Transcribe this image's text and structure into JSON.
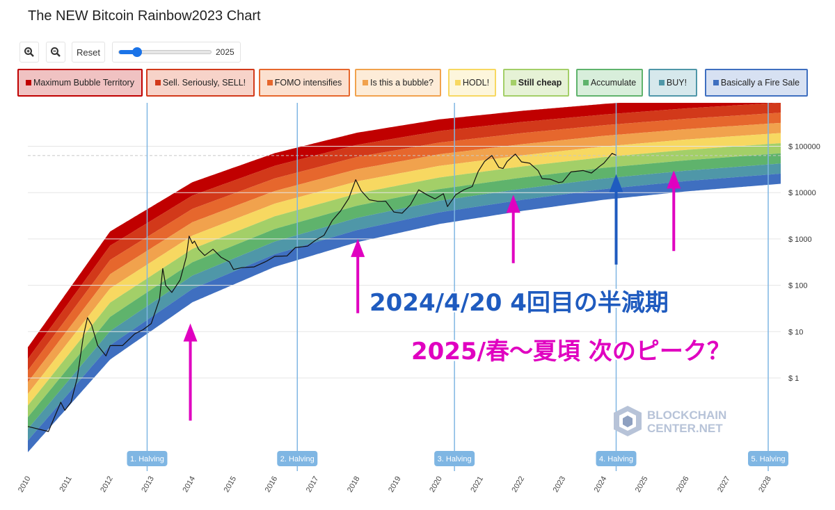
{
  "title": "The NEW Bitcoin Rainbow2023 Chart",
  "toolbar": {
    "zoom_in_icon": "zoom-in-icon",
    "zoom_out_icon": "zoom-out-icon",
    "reset_label": "Reset",
    "year_slider_value": 2025,
    "year_slider_fraction": 0.2,
    "year_slider_label": "2025"
  },
  "legend": [
    {
      "label": "Maximum Bubble Territory",
      "color": "#c00000",
      "bg": "#f0c2c2"
    },
    {
      "label": "Sell. Seriously, SELL!",
      "color": "#d2391a",
      "bg": "#f7d3c9"
    },
    {
      "label": "FOMO intensifies",
      "color": "#e6672d",
      "bg": "#fbe0cf"
    },
    {
      "label": "Is this a bubble?",
      "color": "#f1a24d",
      "bg": "#fdecd8"
    },
    {
      "label": "HODL!",
      "color": "#f7d861",
      "bg": "#fdf6dc"
    },
    {
      "label": "Still cheap",
      "color": "#a3cf68",
      "bg": "#e6f2d6",
      "bold": true
    },
    {
      "label": "Accumulate",
      "color": "#5fb36c",
      "bg": "#d8eedb"
    },
    {
      "label": "BUY!",
      "color": "#4f97a8",
      "bg": "#d6e8ec"
    },
    {
      "label": "Basically a Fire Sale",
      "color": "#3f6fc0",
      "bg": "#d7e1f2"
    }
  ],
  "chart_data": {
    "type": "line",
    "title": "The NEW Bitcoin Rainbow2023 Chart",
    "y_scale": "log",
    "x_range": [
      2010.0,
      2028.3
    ],
    "y_range": [
      0.03,
      500000
    ],
    "y_tick_labels": [
      {
        "value": 1,
        "label": "$ 1"
      },
      {
        "value": 10,
        "label": "$ 10"
      },
      {
        "value": 100,
        "label": "$ 100"
      },
      {
        "value": 1000,
        "label": "$ 1000"
      },
      {
        "value": 10000,
        "label": "$ 10000"
      },
      {
        "value": 100000,
        "label": "$ 100000"
      }
    ],
    "x_tick_labels": [
      "2010",
      "2011",
      "2012",
      "2013",
      "2014",
      "2015",
      "2016",
      "2017",
      "2018",
      "2019",
      "2020",
      "2021",
      "2022",
      "2023",
      "2024",
      "2025",
      "2026",
      "2027",
      "2028"
    ],
    "halvings": [
      {
        "label": "1. Halving",
        "x": 2012.9
      },
      {
        "label": "2. Halving",
        "x": 2016.55
      },
      {
        "label": "3. Halving",
        "x": 2020.37
      },
      {
        "label": "4. Halving",
        "x": 2024.3
      },
      {
        "label": "5. Halving",
        "x": 2028.3
      }
    ],
    "rainbow_bands": {
      "colors": [
        "#c00000",
        "#d2391a",
        "#e6672d",
        "#f1a24d",
        "#f7d861",
        "#a3cf68",
        "#5fb36c",
        "#4f97a8",
        "#3f6fc0"
      ],
      "upper": [
        [
          2010.0,
          4.6
        ],
        [
          2012.0,
          1450
        ],
        [
          2014.0,
          16800
        ],
        [
          2016.0,
          71000
        ],
        [
          2018.0,
          196000
        ],
        [
          2020.0,
          380000
        ],
        [
          2022.0,
          580000
        ],
        [
          2024.0,
          820000
        ],
        [
          2026.0,
          1100000
        ],
        [
          2028.3,
          1450000
        ]
      ],
      "lower": [
        [
          2010.0,
          0.025
        ],
        [
          2012.0,
          2.5
        ],
        [
          2014.0,
          43
        ],
        [
          2016.0,
          250
        ],
        [
          2018.0,
          850
        ],
        [
          2020.0,
          2100
        ],
        [
          2022.0,
          4000
        ],
        [
          2024.0,
          7000
        ],
        [
          2026.0,
          10600
        ],
        [
          2028.3,
          15500
        ]
      ]
    },
    "price_reference_line": 63000,
    "series": [
      {
        "color": "#111111",
        "points": [
          [
            2010.0,
            0.09
          ],
          [
            2010.5,
            0.07
          ],
          [
            2010.8,
            0.3
          ],
          [
            2010.9,
            0.2
          ],
          [
            2011.05,
            0.3
          ],
          [
            2011.2,
            1
          ],
          [
            2011.35,
            8
          ],
          [
            2011.45,
            20
          ],
          [
            2011.55,
            14
          ],
          [
            2011.7,
            5
          ],
          [
            2011.9,
            3
          ],
          [
            2012.0,
            5
          ],
          [
            2012.3,
            5
          ],
          [
            2012.6,
            9
          ],
          [
            2012.8,
            11
          ],
          [
            2013.0,
            15
          ],
          [
            2013.2,
            50
          ],
          [
            2013.28,
            230
          ],
          [
            2013.35,
            100
          ],
          [
            2013.5,
            70
          ],
          [
            2013.7,
            130
          ],
          [
            2013.85,
            400
          ],
          [
            2013.92,
            1150
          ],
          [
            2014.0,
            800
          ],
          [
            2014.05,
            900
          ],
          [
            2014.15,
            600
          ],
          [
            2014.3,
            440
          ],
          [
            2014.5,
            600
          ],
          [
            2014.7,
            400
          ],
          [
            2014.9,
            320
          ],
          [
            2015.0,
            220
          ],
          [
            2015.2,
            240
          ],
          [
            2015.5,
            250
          ],
          [
            2015.8,
            330
          ],
          [
            2016.0,
            420
          ],
          [
            2016.3,
            430
          ],
          [
            2016.5,
            650
          ],
          [
            2016.8,
            700
          ],
          [
            2017.0,
            950
          ],
          [
            2017.2,
            1200
          ],
          [
            2017.4,
            2500
          ],
          [
            2017.6,
            4000
          ],
          [
            2017.8,
            7500
          ],
          [
            2017.97,
            19000
          ],
          [
            2018.1,
            11000
          ],
          [
            2018.3,
            7000
          ],
          [
            2018.5,
            6500
          ],
          [
            2018.7,
            6500
          ],
          [
            2018.9,
            3800
          ],
          [
            2019.1,
            3600
          ],
          [
            2019.3,
            5500
          ],
          [
            2019.5,
            11500
          ],
          [
            2019.7,
            9000
          ],
          [
            2019.9,
            7300
          ],
          [
            2020.1,
            9500
          ],
          [
            2020.2,
            5000
          ],
          [
            2020.4,
            9000
          ],
          [
            2020.6,
            11500
          ],
          [
            2020.8,
            13500
          ],
          [
            2020.95,
            29000
          ],
          [
            2021.1,
            47000
          ],
          [
            2021.28,
            63000
          ],
          [
            2021.45,
            35000
          ],
          [
            2021.55,
            33000
          ],
          [
            2021.65,
            47000
          ],
          [
            2021.85,
            68000
          ],
          [
            2022.0,
            46000
          ],
          [
            2022.2,
            43000
          ],
          [
            2022.4,
            30000
          ],
          [
            2022.5,
            20000
          ],
          [
            2022.7,
            19500
          ],
          [
            2022.9,
            16500
          ],
          [
            2023.0,
            17000
          ],
          [
            2023.2,
            28000
          ],
          [
            2023.5,
            30000
          ],
          [
            2023.7,
            26500
          ],
          [
            2023.9,
            37000
          ],
          [
            2024.0,
            43000
          ],
          [
            2024.2,
            70000
          ],
          [
            2024.3,
            64000
          ]
        ]
      }
    ]
  },
  "annotations": {
    "halving_text": "2024/4/20 4回目の半減期",
    "peak_text": "2025/春～夏頃 次のピーク？",
    "halving_text_color": "#1f5bbf",
    "peak_text_color": "#e000c0",
    "arrows": [
      {
        "x": 2013.95,
        "y_from": 0.12,
        "y_to": 15,
        "color": "#e000c0"
      },
      {
        "x": 2018.02,
        "y_from": 25,
        "y_to": 1000,
        "color": "#e000c0"
      },
      {
        "x": 2021.8,
        "y_from": 300,
        "y_to": 9000,
        "color": "#e000c0"
      },
      {
        "x": 2024.3,
        "y_from": 280,
        "y_to": 25000,
        "color": "#1f5bbf"
      },
      {
        "x": 2025.7,
        "y_from": 550,
        "y_to": 30000,
        "color": "#e000c0"
      }
    ]
  },
  "watermark": {
    "line1": "BLOCKCHAIN",
    "line2": "CENTER.NET"
  }
}
